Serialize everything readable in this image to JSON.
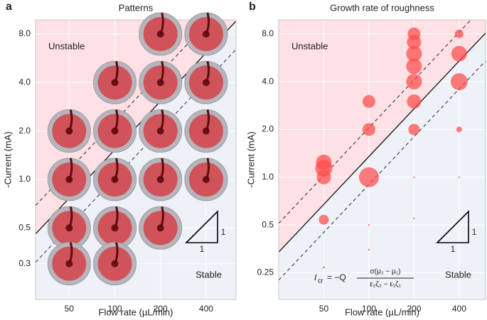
{
  "chart_data": [
    {
      "type": "dishes",
      "panel_label": "a",
      "title": "Patterns",
      "x_label": "Flow rate (µL/min)",
      "y_label": "-Current (mA)",
      "log_x": true,
      "log_y": true,
      "grid": true,
      "xlim": [
        30,
        630
      ],
      "ylim": [
        0.18,
        9.8
      ],
      "xticks": [
        50,
        100,
        200,
        400
      ],
      "yticks": [
        {
          "value": 8,
          "label": "8.0"
        },
        {
          "value": 4,
          "label": "4.0"
        },
        {
          "value": 2,
          "label": "2.0"
        },
        {
          "value": 1,
          "label": "1.0"
        },
        0.5,
        0.3
      ],
      "x": [
        400,
        400,
        400,
        400,
        200,
        200,
        200,
        200,
        200,
        100,
        100,
        100,
        100,
        100,
        50,
        50,
        50,
        50
      ],
      "y": [
        8,
        4,
        2,
        1,
        8,
        4,
        2,
        1,
        0.5,
        4,
        2,
        1,
        0.5,
        0.3,
        2,
        1,
        0.5,
        0.3
      ],
      "critical_lines": [
        {
          "k": 0.0153,
          "dashed": false
        },
        {
          "k": 0.023,
          "dashed": true
        },
        {
          "k": 0.0102,
          "dashed": true
        }
      ],
      "unstable_label": "Unstable",
      "stable_label": "Stable",
      "slope_labels": [
        "1",
        "1"
      ],
      "unstable_color": "#fde1e4",
      "stable_color": "#eef2f8"
    },
    {
      "type": "bubble",
      "panel_label": "b",
      "title": "Growth rate of roughness",
      "x_label": "Flow rate (µL/min)",
      "y_label": "-Current (mA)",
      "log_x": true,
      "log_y": true,
      "grid": true,
      "xlim": [
        25,
        600
      ],
      "ylim": [
        0.17,
        9.8
      ],
      "xticks": [
        50,
        100,
        200,
        400
      ],
      "yticks": [
        {
          "value": 8,
          "label": "8.0"
        },
        {
          "value": 4,
          "label": "4.0"
        },
        {
          "value": 2,
          "label": "2.0"
        },
        {
          "value": 1,
          "label": "1.0"
        },
        0.5,
        0.25
      ],
      "color": "#ff4a4a",
      "x": [
        50,
        50,
        50,
        50,
        50,
        100,
        100,
        100,
        100,
        100,
        200,
        200,
        200,
        200,
        200,
        200,
        200,
        200,
        200,
        400,
        400,
        400,
        400,
        400
      ],
      "y": [
        1.24,
        1.14,
        1.0,
        0.54,
        0.27,
        3.0,
        2.0,
        1.0,
        0.5,
        0.35,
        8.0,
        7.1,
        6.0,
        5.0,
        4.0,
        3.0,
        2.0,
        1.0,
        0.55,
        8.0,
        6.0,
        4.0,
        2.0,
        1.0
      ],
      "sizes": [
        11,
        12,
        10,
        7,
        1.5,
        9,
        9,
        14,
        1.2,
        1.2,
        9,
        10,
        11,
        11,
        11,
        10,
        8,
        1.2,
        1.2,
        6,
        11,
        12,
        4,
        1.2
      ],
      "critical_lines": [
        {
          "k": 0.0135,
          "dashed": false
        },
        {
          "k": 0.0205,
          "dashed": true
        },
        {
          "k": 0.009,
          "dashed": true
        }
      ],
      "unstable_label": "Unstable",
      "stable_label": "Stable",
      "slope_labels": [
        "1",
        "1"
      ],
      "formula": {
        "lhs": "I",
        "lhs_sub": "cr",
        "prefix": "= −Q",
        "numerator": "σ(μ₂ − μ₁)",
        "denominator": "ε₂ζ₂ − ε₁ζ₁"
      },
      "unstable_color": "#fde1e4",
      "stable_color": "#eef2f8"
    }
  ]
}
